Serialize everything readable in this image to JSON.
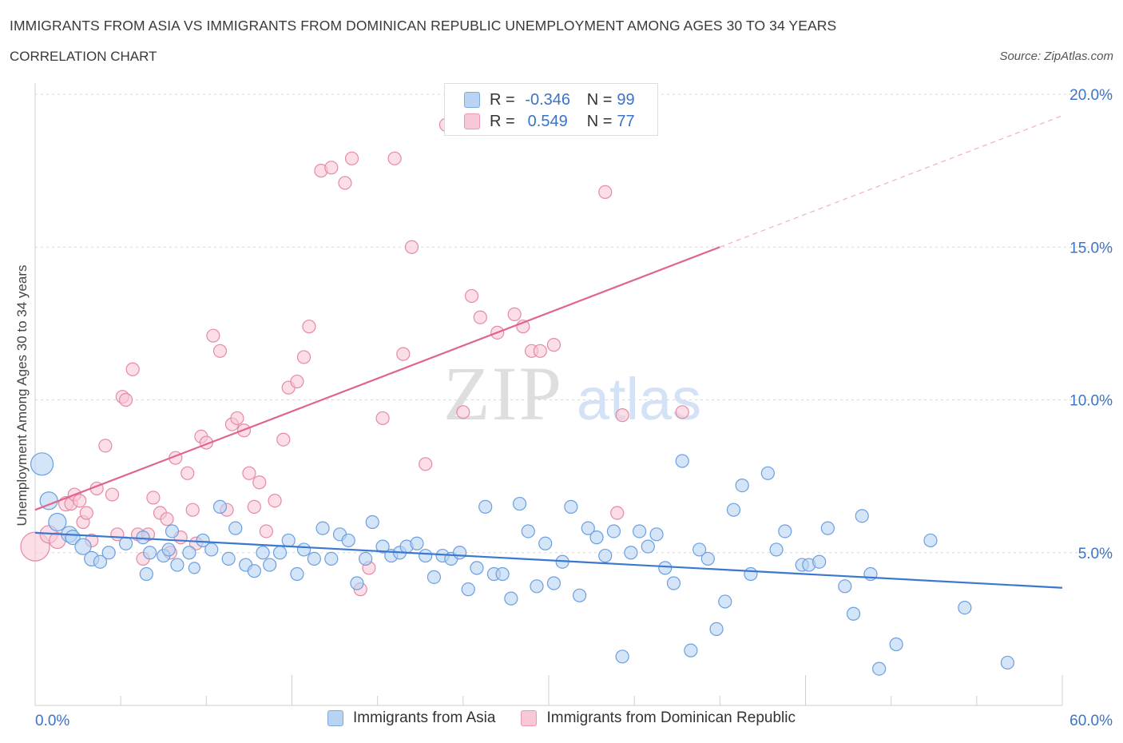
{
  "title": "IMMIGRANTS FROM ASIA VS IMMIGRANTS FROM DOMINICAN REPUBLIC UNEMPLOYMENT AMONG AGES 30 TO 34 YEARS",
  "subtitle": "CORRELATION CHART",
  "source": "Source: ZipAtlas.com",
  "watermark": {
    "zip": "ZIP",
    "atlas": "atlas"
  },
  "legend": {
    "rows": [
      {
        "r_label": "R =",
        "r_value": "-0.346",
        "n_label": "N =",
        "n_value": "99"
      },
      {
        "r_label": "R =",
        "r_value": "0.549",
        "n_label": "N =",
        "n_value": "77"
      }
    ]
  },
  "bottom_legend": [
    "Immigrants from Asia",
    "Immigrants from Dominican Republic"
  ],
  "colors": {
    "blue": "#6a9fe0",
    "blue_fill": "#b9d3f4",
    "blue_line": "#3b78d0",
    "pink": "#e58aa6",
    "pink_fill": "#f9c8d6",
    "pink_line": "#e0648f",
    "axis_text": "#3b73c8"
  },
  "chart_data": {
    "type": "scatter",
    "title": "IMMIGRANTS FROM ASIA VS IMMIGRANTS FROM DOMINICAN REPUBLIC UNEMPLOYMENT AMONG AGES 30 TO 34 YEARS",
    "xlabel": "",
    "ylabel": "Unemployment Among Ages 30 to 34 years",
    "xlim": [
      0,
      60
    ],
    "ylim": [
      0,
      20
    ],
    "x_tick_labels": [
      "0.0%",
      "60.0%"
    ],
    "y_ticks": [
      5,
      10,
      15,
      20
    ],
    "y_tick_labels": [
      "5.0%",
      "10.0%",
      "15.0%",
      "20.0%"
    ],
    "grid": true,
    "legend_position": "top-center",
    "series": [
      {
        "name": "Immigrants from Asia",
        "trend": {
          "x": [
            0,
            60
          ],
          "y": [
            5.65,
            3.85
          ]
        },
        "points": [
          [
            0.4,
            7.9,
            14
          ],
          [
            0.8,
            6.7,
            11
          ],
          [
            1.3,
            6.0,
            11
          ],
          [
            2.0,
            5.6,
            10
          ],
          [
            2.2,
            5.5,
            9
          ],
          [
            2.8,
            5.2,
            10
          ],
          [
            3.3,
            4.8,
            9
          ],
          [
            3.8,
            4.7,
            8
          ],
          [
            4.3,
            5.0,
            8
          ],
          [
            5.3,
            5.3,
            8
          ],
          [
            6.3,
            5.5,
            8
          ],
          [
            6.5,
            4.3,
            8
          ],
          [
            6.7,
            5.0,
            8
          ],
          [
            7.5,
            4.9,
            8
          ],
          [
            7.8,
            5.1,
            8
          ],
          [
            8.0,
            5.7,
            8
          ],
          [
            8.3,
            4.6,
            8
          ],
          [
            9.0,
            5.0,
            8
          ],
          [
            9.3,
            4.5,
            7
          ],
          [
            9.8,
            5.4,
            8
          ],
          [
            10.3,
            5.1,
            8
          ],
          [
            10.8,
            6.5,
            8
          ],
          [
            11.3,
            4.8,
            8
          ],
          [
            11.7,
            5.8,
            8
          ],
          [
            12.3,
            4.6,
            8
          ],
          [
            12.8,
            4.4,
            8
          ],
          [
            13.3,
            5.0,
            8
          ],
          [
            13.7,
            4.6,
            8
          ],
          [
            14.3,
            5.0,
            8
          ],
          [
            14.8,
            5.4,
            8
          ],
          [
            15.3,
            4.3,
            8
          ],
          [
            15.7,
            5.1,
            8
          ],
          [
            16.3,
            4.8,
            8
          ],
          [
            16.8,
            5.8,
            8
          ],
          [
            17.3,
            4.8,
            8
          ],
          [
            17.8,
            5.6,
            8
          ],
          [
            18.3,
            5.4,
            8
          ],
          [
            18.8,
            4.0,
            8
          ],
          [
            19.3,
            4.8,
            8
          ],
          [
            19.7,
            6.0,
            8
          ],
          [
            20.3,
            5.2,
            8
          ],
          [
            20.8,
            4.9,
            8
          ],
          [
            21.3,
            5.0,
            8
          ],
          [
            21.7,
            5.2,
            8
          ],
          [
            22.3,
            5.3,
            8
          ],
          [
            22.8,
            4.9,
            8
          ],
          [
            23.3,
            4.2,
            8
          ],
          [
            23.8,
            4.9,
            8
          ],
          [
            24.3,
            4.8,
            8
          ],
          [
            24.8,
            5.0,
            8
          ],
          [
            25.3,
            3.8,
            8
          ],
          [
            25.8,
            4.5,
            8
          ],
          [
            26.3,
            6.5,
            8
          ],
          [
            26.8,
            4.3,
            8
          ],
          [
            27.3,
            4.3,
            8
          ],
          [
            27.8,
            3.5,
            8
          ],
          [
            28.3,
            6.6,
            8
          ],
          [
            28.8,
            5.7,
            8
          ],
          [
            29.3,
            3.9,
            8
          ],
          [
            29.8,
            5.3,
            8
          ],
          [
            30.3,
            4.0,
            8
          ],
          [
            30.8,
            4.7,
            8
          ],
          [
            31.3,
            6.5,
            8
          ],
          [
            31.8,
            3.6,
            8
          ],
          [
            32.3,
            5.8,
            8
          ],
          [
            32.8,
            5.5,
            8
          ],
          [
            33.3,
            4.9,
            8
          ],
          [
            33.8,
            5.7,
            8
          ],
          [
            34.3,
            1.6,
            8
          ],
          [
            34.8,
            5.0,
            8
          ],
          [
            35.3,
            5.7,
            8
          ],
          [
            35.8,
            5.2,
            8
          ],
          [
            36.3,
            5.6,
            8
          ],
          [
            36.8,
            4.5,
            8
          ],
          [
            37.3,
            4.0,
            8
          ],
          [
            37.8,
            8.0,
            8
          ],
          [
            38.3,
            1.8,
            8
          ],
          [
            38.8,
            5.1,
            8
          ],
          [
            39.3,
            4.8,
            8
          ],
          [
            39.8,
            2.5,
            8
          ],
          [
            40.3,
            3.4,
            8
          ],
          [
            40.8,
            6.4,
            8
          ],
          [
            41.3,
            7.2,
            8
          ],
          [
            41.8,
            4.3,
            8
          ],
          [
            42.8,
            7.6,
            8
          ],
          [
            43.3,
            5.1,
            8
          ],
          [
            43.8,
            5.7,
            8
          ],
          [
            44.8,
            4.6,
            8
          ],
          [
            45.2,
            4.6,
            8
          ],
          [
            45.8,
            4.7,
            8
          ],
          [
            46.3,
            5.8,
            8
          ],
          [
            47.3,
            3.9,
            8
          ],
          [
            47.8,
            3.0,
            8
          ],
          [
            48.3,
            6.2,
            8
          ],
          [
            48.8,
            4.3,
            8
          ],
          [
            49.3,
            1.2,
            8
          ],
          [
            50.3,
            2.0,
            8
          ],
          [
            52.3,
            5.4,
            8
          ],
          [
            54.3,
            3.2,
            8
          ],
          [
            56.8,
            1.4,
            8
          ]
        ]
      },
      {
        "name": "Immigrants from Dominican Republic",
        "trend": {
          "x": [
            0,
            40
          ],
          "y": [
            6.4,
            15.0
          ]
        },
        "trend_extension": {
          "x": [
            40,
            60
          ],
          "y": [
            15.0,
            19.3
          ]
        },
        "points": [
          [
            0.0,
            5.2,
            18
          ],
          [
            0.8,
            5.6,
            11
          ],
          [
            1.3,
            5.4,
            10
          ],
          [
            1.8,
            6.6,
            9
          ],
          [
            2.1,
            6.6,
            8
          ],
          [
            2.3,
            6.9,
            8
          ],
          [
            2.6,
            6.7,
            8
          ],
          [
            2.8,
            6.0,
            8
          ],
          [
            3.0,
            6.3,
            8
          ],
          [
            3.3,
            5.4,
            8
          ],
          [
            3.6,
            7.1,
            8
          ],
          [
            4.1,
            8.5,
            8
          ],
          [
            4.5,
            6.9,
            8
          ],
          [
            4.8,
            5.6,
            8
          ],
          [
            5.1,
            10.1,
            8
          ],
          [
            5.3,
            10.0,
            8
          ],
          [
            5.7,
            11.0,
            8
          ],
          [
            6.0,
            5.6,
            8
          ],
          [
            6.3,
            4.8,
            8
          ],
          [
            6.6,
            5.6,
            8
          ],
          [
            6.9,
            6.8,
            8
          ],
          [
            7.3,
            6.3,
            8
          ],
          [
            7.7,
            6.1,
            8
          ],
          [
            7.9,
            5.0,
            8
          ],
          [
            8.2,
            8.1,
            8
          ],
          [
            8.5,
            5.5,
            8
          ],
          [
            8.9,
            7.6,
            8
          ],
          [
            9.2,
            6.4,
            8
          ],
          [
            9.4,
            5.3,
            8
          ],
          [
            9.7,
            8.8,
            8
          ],
          [
            10.0,
            8.6,
            8
          ],
          [
            10.4,
            12.1,
            8
          ],
          [
            10.8,
            11.6,
            8
          ],
          [
            11.2,
            6.4,
            8
          ],
          [
            11.5,
            9.2,
            8
          ],
          [
            11.8,
            9.4,
            8
          ],
          [
            12.2,
            9.0,
            8
          ],
          [
            12.5,
            7.6,
            8
          ],
          [
            12.8,
            6.5,
            8
          ],
          [
            13.1,
            7.3,
            8
          ],
          [
            13.5,
            5.7,
            8
          ],
          [
            14.0,
            6.7,
            8
          ],
          [
            14.5,
            8.7,
            8
          ],
          [
            14.8,
            10.4,
            8
          ],
          [
            15.3,
            10.6,
            8
          ],
          [
            15.7,
            11.4,
            8
          ],
          [
            16.0,
            12.4,
            8
          ],
          [
            16.7,
            17.5,
            8
          ],
          [
            17.3,
            17.6,
            8
          ],
          [
            18.1,
            17.1,
            8
          ],
          [
            18.5,
            17.9,
            8
          ],
          [
            19.0,
            3.8,
            8
          ],
          [
            19.5,
            4.5,
            8
          ],
          [
            20.3,
            9.4,
            8
          ],
          [
            21.0,
            17.9,
            8
          ],
          [
            21.5,
            11.5,
            8
          ],
          [
            22.0,
            15.0,
            8
          ],
          [
            22.8,
            7.9,
            8
          ],
          [
            24.0,
            19.0,
            8
          ],
          [
            25.0,
            9.6,
            8
          ],
          [
            25.5,
            13.4,
            8
          ],
          [
            26.0,
            12.7,
            8
          ],
          [
            27.0,
            12.2,
            8
          ],
          [
            28.0,
            12.8,
            8
          ],
          [
            28.5,
            12.4,
            8
          ],
          [
            29.0,
            11.6,
            8
          ],
          [
            29.5,
            11.6,
            8
          ],
          [
            30.3,
            11.8,
            8
          ],
          [
            33.3,
            16.8,
            8
          ],
          [
            34.0,
            6.3,
            8
          ],
          [
            34.3,
            9.5,
            8
          ],
          [
            37.8,
            9.6,
            8
          ]
        ]
      }
    ]
  }
}
